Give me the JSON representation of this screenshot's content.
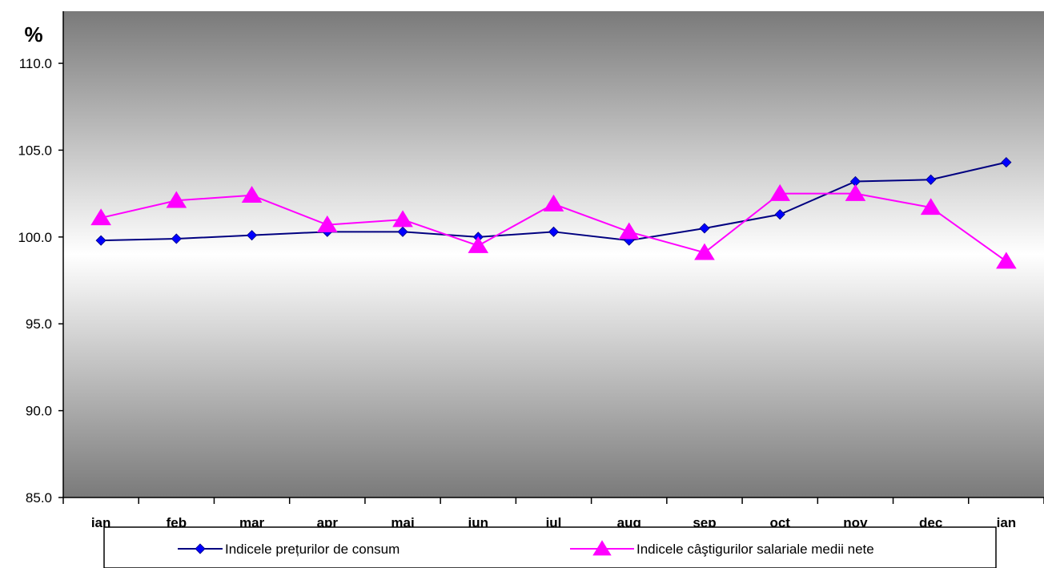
{
  "chart_data": {
    "type": "line",
    "y_unit_label": "%",
    "ylim": [
      85.0,
      113.0
    ],
    "yticks": [
      "85.0",
      "90.0",
      "95.0",
      "100.0",
      "105.0",
      "110.0"
    ],
    "ytick_values": [
      85,
      90,
      95,
      100,
      105,
      110
    ],
    "categories": [
      "ian",
      "feb",
      "mar",
      "apr",
      "mai",
      "iun",
      "iul",
      "aug",
      "sep",
      "oct",
      "nov",
      "dec",
      "ian"
    ],
    "grid": false,
    "legend_position": "bottom",
    "series": [
      {
        "name": "Indicele prețurilor de consum",
        "color": "#000080",
        "marker_color": "#0000ff",
        "marker": "diamond",
        "values": [
          99.8,
          99.9,
          100.1,
          100.3,
          100.3,
          100.0,
          100.3,
          99.8,
          100.5,
          101.3,
          103.2,
          103.3,
          104.3
        ]
      },
      {
        "name": "Indicele câştigurilor salariale medii nete",
        "color": "#ff00ff",
        "marker_color": "#ff00ff",
        "marker": "triangle",
        "values": [
          101.1,
          102.1,
          102.4,
          100.7,
          101.0,
          99.5,
          101.9,
          100.3,
          99.1,
          102.5,
          102.5,
          101.7,
          98.6
        ]
      }
    ]
  }
}
